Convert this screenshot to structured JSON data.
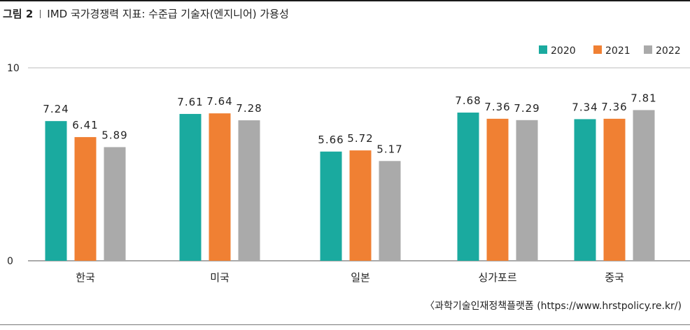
{
  "figure": {
    "label": "그림 2",
    "title": "IMD 국가경쟁력 지표: 수준급 기술자(엔지니어) 가용성",
    "source": "〈과학기술인재정책플랫폼 (https://www.hrstpolicy.re.kr/)"
  },
  "chart_data": {
    "type": "bar",
    "categories": [
      "한국",
      "미국",
      "일본",
      "싱가포르",
      "중국"
    ],
    "series": [
      {
        "name": "2020",
        "color": "#1aaa9f",
        "values": [
          7.24,
          7.61,
          5.66,
          7.68,
          7.34
        ],
        "labels": [
          "7.24",
          "7.61",
          "5.66",
          "7.68",
          "7.34"
        ]
      },
      {
        "name": "2021",
        "color": "#f08033",
        "values": [
          6.41,
          7.64,
          5.72,
          7.36,
          7.36
        ],
        "labels": [
          "6.41",
          "7.64",
          "5.72",
          "7.36",
          "7.36"
        ]
      },
      {
        "name": "2022",
        "color": "#aaaaaa",
        "values": [
          5.89,
          7.28,
          5.17,
          7.29,
          7.81
        ],
        "labels": [
          "5.89",
          "7.28",
          "5.17",
          "7.29",
          "7.81"
        ]
      }
    ],
    "ylim": [
      0,
      10
    ],
    "yticks": [
      "0",
      "10"
    ],
    "grid": "top and baseline only",
    "legend_position": "top-right"
  }
}
